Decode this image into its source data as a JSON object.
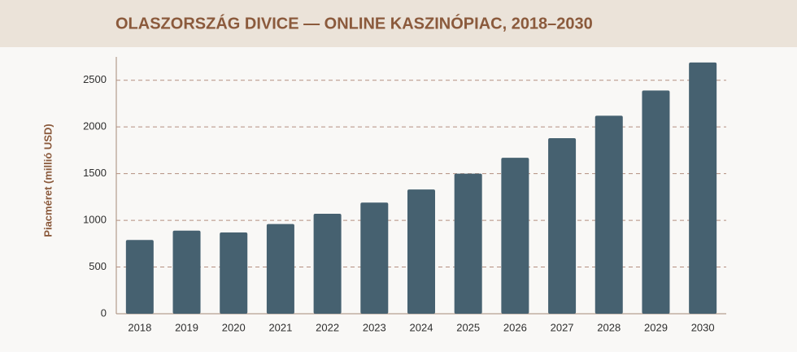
{
  "chart_data": {
    "type": "bar",
    "title": "OLASZORSZÁG DIVICE — ONLINE KASZINÓPIAC, 2018–2030",
    "y_label": "Piacméret (millió USD)",
    "categories": [
      "2018",
      "2019",
      "2020",
      "2021",
      "2022",
      "2023",
      "2024",
      "2025",
      "2026",
      "2027",
      "2028",
      "2029",
      "2030"
    ],
    "values": [
      790,
      890,
      870,
      960,
      1070,
      1190,
      1330,
      1500,
      1670,
      1880,
      2120,
      2390,
      2690
    ],
    "color": "#466170",
    "ylim": [
      0,
      2750
    ],
    "yticks": [
      0,
      500,
      1000,
      1500,
      2000,
      2500
    ],
    "grid": true
  }
}
